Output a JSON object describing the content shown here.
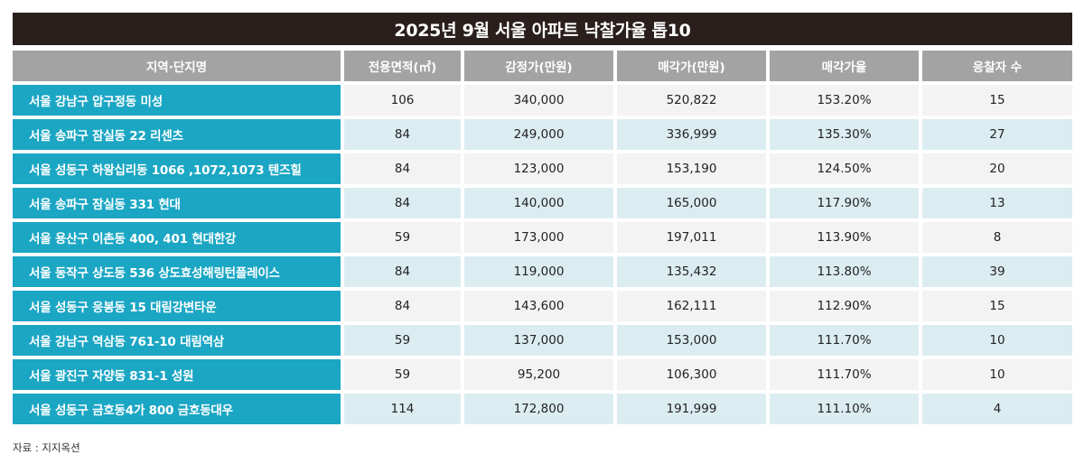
{
  "title": "2025년 9월 서울 아파트 낙찰가율 톱10",
  "headers": [
    "지역·단지명",
    "전용면적(㎡)",
    "감정가(만원)",
    "매각가(만원)",
    "매각가율",
    "응찰자 수"
  ],
  "rows": [
    {
      "name": "서울 강남구 압구정동 미성",
      "area": "106",
      "appraisal": "340,000",
      "sale": "520,822",
      "rate": "153.20%",
      "bidders": "15"
    },
    {
      "name": "서울 송파구 잠실동 22 리센츠",
      "area": "84",
      "appraisal": "249,000",
      "sale": "336,999",
      "rate": "135.30%",
      "bidders": "27"
    },
    {
      "name": "서울 성동구 하왕십리동 1066 ,1072,1073 텐즈힐",
      "area": "84",
      "appraisal": "123,000",
      "sale": "153,190",
      "rate": "124.50%",
      "bidders": "20"
    },
    {
      "name": "서울 송파구 잠실동 331 현대",
      "area": "84",
      "appraisal": "140,000",
      "sale": "165,000",
      "rate": "117.90%",
      "bidders": "13"
    },
    {
      "name": "서울 용산구 이촌동 400, 401 현대한강",
      "area": "59",
      "appraisal": "173,000",
      "sale": "197,011",
      "rate": "113.90%",
      "bidders": "8"
    },
    {
      "name": "서울 동작구 상도동 536 상도효성해링턴플레이스",
      "area": "84",
      "appraisal": "119,000",
      "sale": "135,432",
      "rate": "113.80%",
      "bidders": "39"
    },
    {
      "name": "서울 성동구 응봉동 15 대림강변타운",
      "area": "84",
      "appraisal": "143,600",
      "sale": "162,111",
      "rate": "112.90%",
      "bidders": "15"
    },
    {
      "name": "서울 강남구 역삼동 761-10 대림역삼",
      "area": "59",
      "appraisal": "137,000",
      "sale": "153,000",
      "rate": "111.70%",
      "bidders": "10"
    },
    {
      "name": "서울 광진구 자양동 831-1 성원",
      "area": "59",
      "appraisal": "95,200",
      "sale": "106,300",
      "rate": "111.70%",
      "bidders": "10"
    },
    {
      "name": "서울 성동구 금호동4가 800 금호동대우",
      "area": "114",
      "appraisal": "172,800",
      "sale": "191,999",
      "rate": "111.10%",
      "bidders": "4"
    }
  ],
  "source": "자료 : 지지옥션",
  "chart_data": {
    "type": "table",
    "title": "2025년 9월 서울 아파트 낙찰가율 톱10",
    "columns": [
      "지역·단지명",
      "전용면적(㎡)",
      "감정가(만원)",
      "매각가(만원)",
      "매각가율",
      "응찰자 수"
    ],
    "rows": [
      [
        "서울 강남구 압구정동 미성",
        106,
        340000,
        520822,
        153.2,
        15
      ],
      [
        "서울 송파구 잠실동 22 리센츠",
        84,
        249000,
        336999,
        135.3,
        27
      ],
      [
        "서울 성동구 하왕십리동 1066 ,1072,1073 텐즈힐",
        84,
        123000,
        153190,
        124.5,
        20
      ],
      [
        "서울 송파구 잠실동 331 현대",
        84,
        140000,
        165000,
        117.9,
        13
      ],
      [
        "서울 용산구 이촌동 400, 401 현대한강",
        59,
        173000,
        197011,
        113.9,
        8
      ],
      [
        "서울 동작구 상도동 536 상도효성해링턴플레이스",
        84,
        119000,
        135432,
        113.8,
        39
      ],
      [
        "서울 성동구 응봉동 15 대림강변타운",
        84,
        143600,
        162111,
        112.9,
        15
      ],
      [
        "서울 강남구 역삼동 761-10 대림역삼",
        59,
        137000,
        153000,
        111.7,
        10
      ],
      [
        "서울 광진구 자양동 831-1 성원",
        59,
        95200,
        106300,
        111.7,
        10
      ],
      [
        "서울 성동구 금호동4가 800 금호동대우",
        114,
        172800,
        191999,
        111.1,
        4
      ]
    ]
  },
  "colors": {
    "title_bg": "#2a1f1c",
    "header_bg": "#a3a3a3",
    "name_bg": "#1ba6c4",
    "row_light": "#f3f3f3",
    "row_blue": "#dcedf2"
  }
}
